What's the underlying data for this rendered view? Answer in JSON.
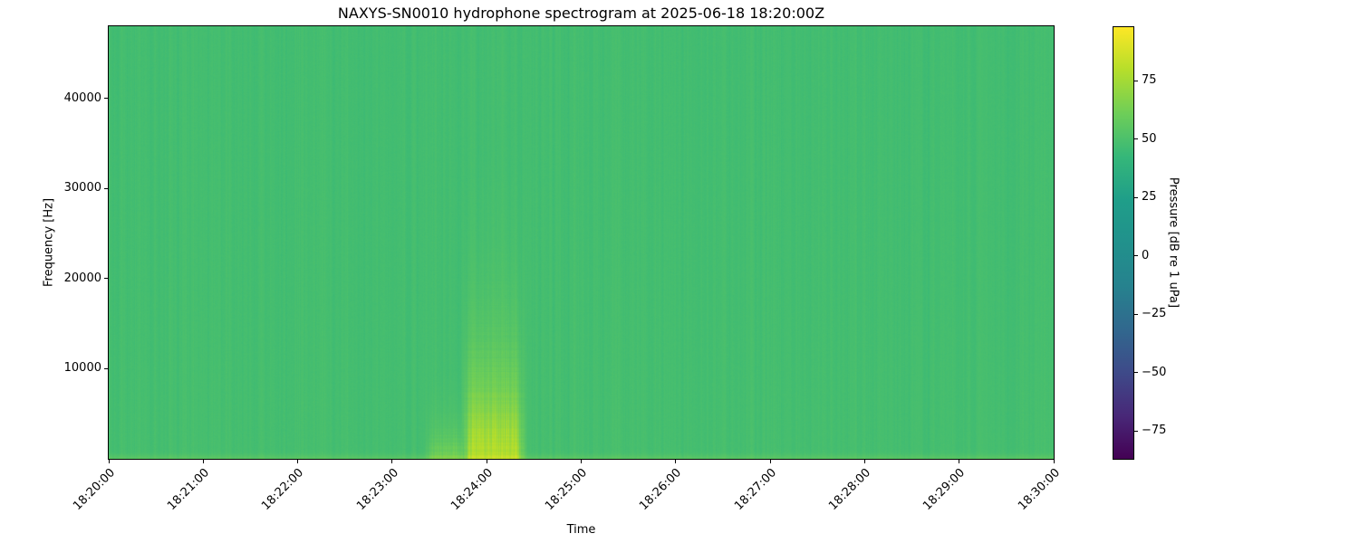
{
  "chart_data": {
    "type": "heatmap",
    "title": "NAXYS-SN0010 hydrophone spectrogram at 2025-06-18 18:20:00Z",
    "xlabel": "Time",
    "ylabel": "Frequency [Hz]",
    "colorbar_label": "Pressure [dB re 1 uPa]",
    "colormap": "viridis",
    "x_start_time": "18:20:00",
    "x_end_time": "18:30:00",
    "duration_seconds": 600,
    "x_tick_labels": [
      "18:20:00",
      "18:21:00",
      "18:22:00",
      "18:23:00",
      "18:24:00",
      "18:25:00",
      "18:26:00",
      "18:27:00",
      "18:28:00",
      "18:29:00",
      "18:30:00"
    ],
    "freq_range_hz": [
      0,
      48000
    ],
    "y_tick_values": [
      10000,
      20000,
      30000,
      40000
    ],
    "y_tick_labels": [
      "10000",
      "20000",
      "30000",
      "40000"
    ],
    "value_range_db": [
      -87,
      98
    ],
    "colorbar_tick_values": [
      75,
      50,
      25,
      0,
      -25,
      -50,
      -75
    ],
    "colorbar_tick_labels": [
      "75",
      "50",
      "25",
      "0",
      "−25",
      "−50",
      "−75"
    ],
    "background_level_db": 47,
    "features": [
      {
        "name": "ambient-broadband-background",
        "time_s": [
          0,
          600
        ],
        "freq_hz": [
          0,
          48000
        ],
        "level_db": 47
      },
      {
        "name": "low-frequency-surface-band",
        "time_s": [
          0,
          600
        ],
        "freq_hz": [
          0,
          900
        ],
        "level_db": 53
      },
      {
        "name": "transient-event-onset",
        "time_s": [
          204,
          226
        ],
        "freq_hz": [
          0,
          7500
        ],
        "peak_level_db": 61
      },
      {
        "name": "transient-event-main",
        "time_s": [
          227,
          262
        ],
        "freq_hz": [
          0,
          22000
        ],
        "peak_level_db": 78
      }
    ]
  }
}
